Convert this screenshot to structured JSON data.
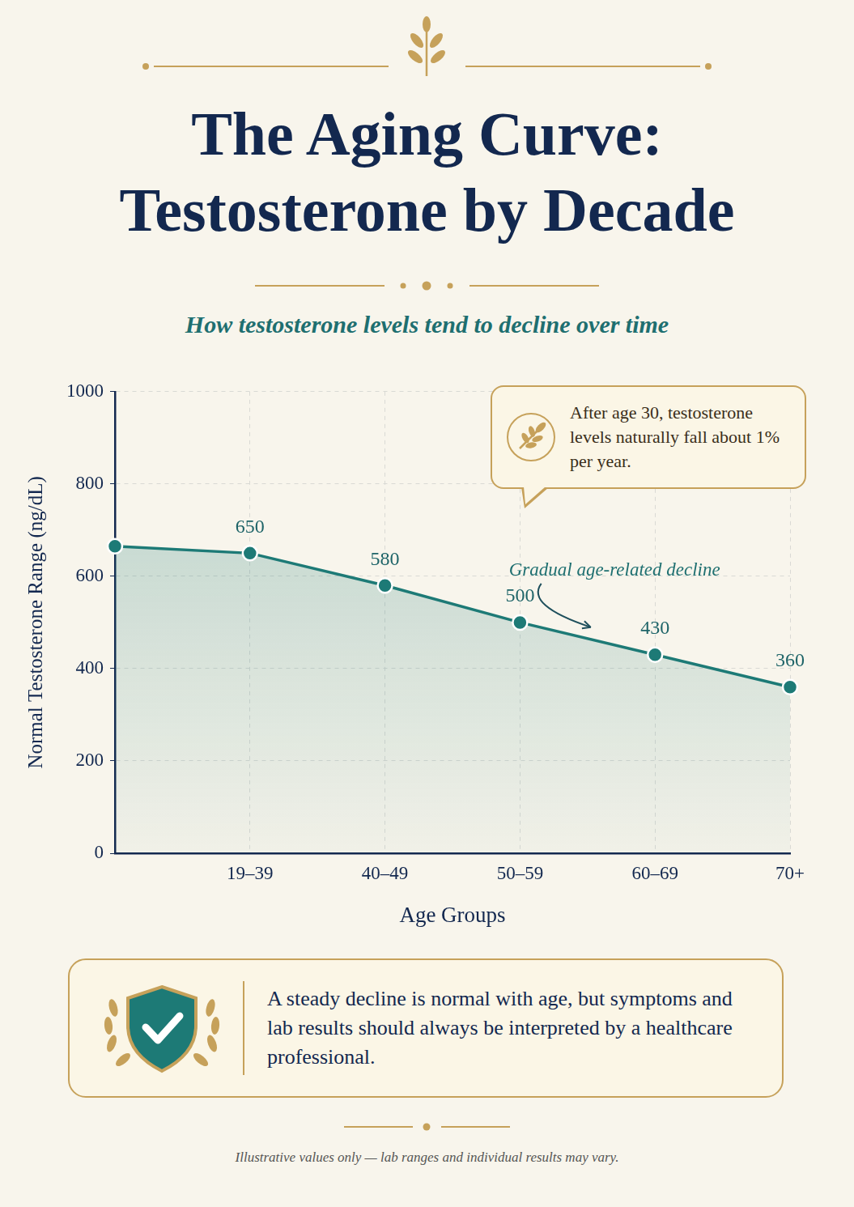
{
  "chart_data": {
    "type": "line",
    "title": "The Aging Curve: Testosterone by Decade",
    "subtitle": "How testosterone levels tend to decline over time",
    "categories": [
      null,
      "19–39",
      "40–49",
      "50–59",
      "60–69",
      "70+"
    ],
    "values": [
      665,
      650,
      580,
      500,
      430,
      360
    ],
    "value_labels": [
      null,
      "650",
      "580",
      "500",
      "430",
      "360"
    ],
    "data_labels": true,
    "color": "#1d7a76",
    "marker": "circle",
    "x_label": "Age Groups",
    "y_label": "Normal Testosterone Range (ng/dL)",
    "ylim": [
      0,
      1000
    ],
    "yticks": [
      0,
      200,
      400,
      600,
      800,
      1000
    ],
    "grid": true,
    "annotation": "Gradual age-related decline",
    "callout": "After age 30, testosterone levels naturally fall about 1% per year.",
    "note": "A steady decline is normal with age, but symptoms and lab results should always be interpreted by a healthcare professional.",
    "footnote": "Illustrative values only — lab ranges and individual results may vary."
  }
}
